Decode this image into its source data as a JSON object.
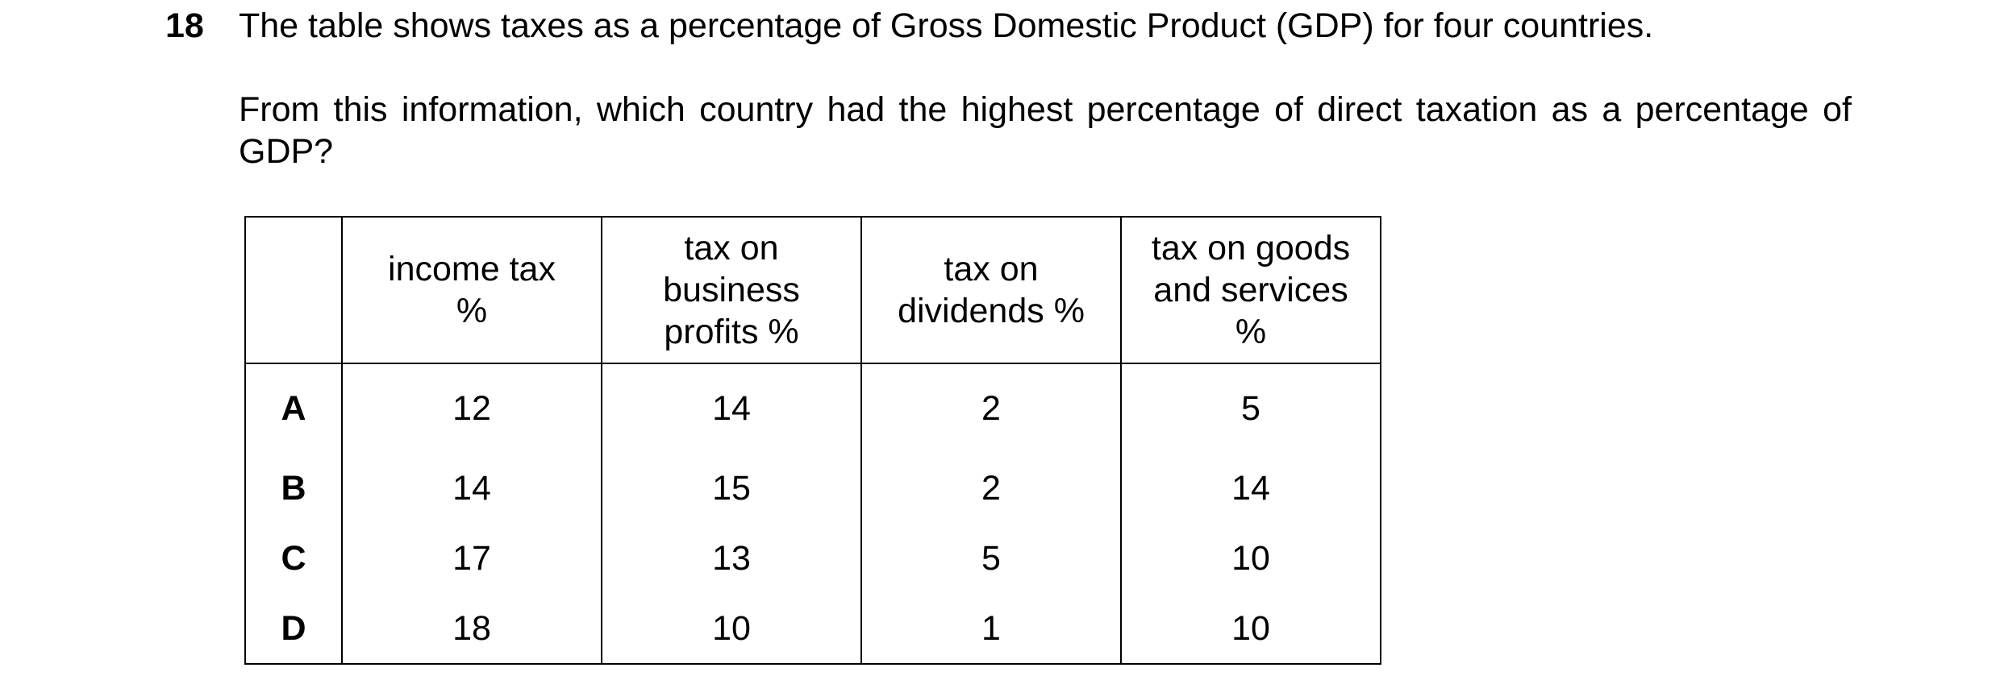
{
  "question": {
    "number": "18",
    "text": "The table shows taxes as a percentage of Gross Domestic Product (GDP) for four countries.",
    "prompt": "From this information, which country had the highest percentage of direct taxation as a percentage of GDP?"
  },
  "table": {
    "headers": [
      "",
      "income tax %",
      "tax on business profits %",
      "tax on dividends %",
      "tax on goods and services %"
    ],
    "rows": [
      {
        "label": "A",
        "values": [
          "12",
          "14",
          "2",
          "5"
        ]
      },
      {
        "label": "B",
        "values": [
          "14",
          "15",
          "2",
          "14"
        ]
      },
      {
        "label": "C",
        "values": [
          "17",
          "13",
          "5",
          "10"
        ]
      },
      {
        "label": "D",
        "values": [
          "18",
          "10",
          "1",
          "10"
        ]
      }
    ]
  }
}
